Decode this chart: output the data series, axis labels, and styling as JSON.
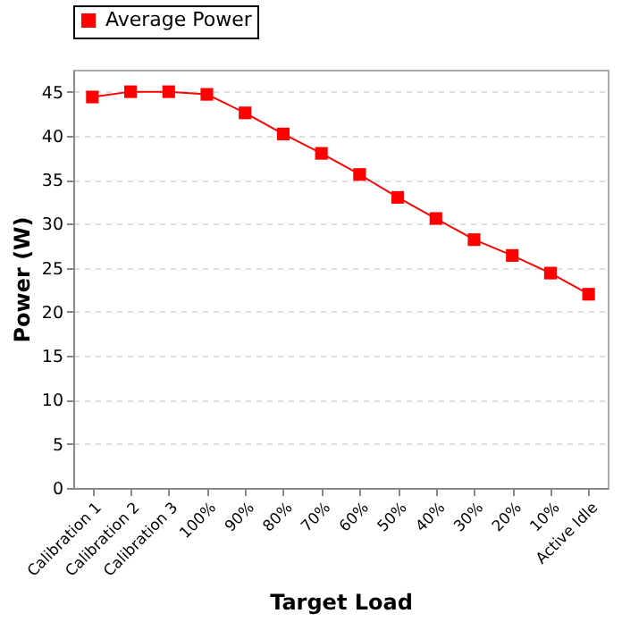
{
  "chart_data": {
    "type": "line",
    "xlabel": "Target Load",
    "ylabel": "Power (W)",
    "categories": [
      "Calibration 1",
      "Calibration 2",
      "Calibration 3",
      "100%",
      "90%",
      "80%",
      "70%",
      "60%",
      "50%",
      "40%",
      "30%",
      "20%",
      "10%",
      "Active Idle"
    ],
    "series": [
      {
        "name": "Average Power",
        "color": "#ff0000",
        "values": [
          44.4,
          45,
          45,
          44.7,
          42.6,
          40.2,
          38,
          35.6,
          33,
          30.6,
          28.2,
          26.4,
          24.4,
          22
        ]
      }
    ],
    "ylim": [
      0,
      47.5
    ],
    "yticks": [
      0,
      5,
      10,
      15,
      20,
      25,
      30,
      35,
      40,
      45
    ],
    "grid": "y",
    "legend": "top",
    "marker": "square",
    "line_style": "solid"
  }
}
